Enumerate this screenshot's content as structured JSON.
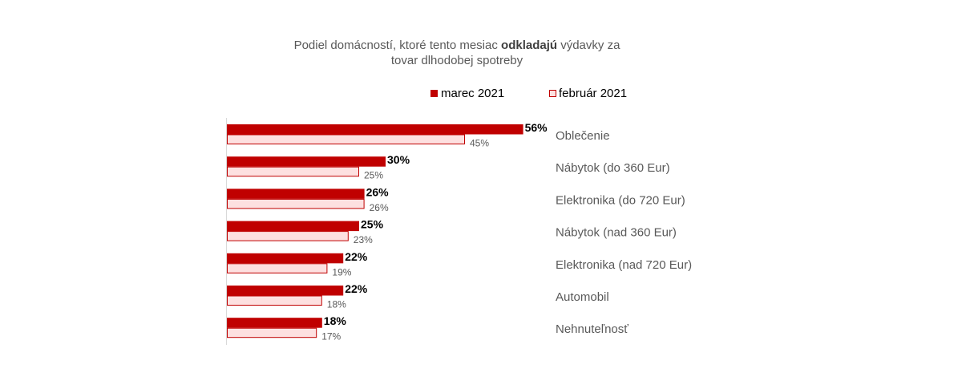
{
  "chart_data": {
    "type": "bar",
    "orientation": "horizontal",
    "title": {
      "line1_before": "Podiel domácností, ktoré tento mesiac ",
      "line1_bold": "odkladajú",
      "line1_after": " výdavky za",
      "line2": "tovar dlhodobej spotreby"
    },
    "categories": [
      "Oblečenie",
      "Nábytok (do 360 Eur)",
      "Elektronika (do 720 Eur)",
      "Nábytok (nad 360 Eur)",
      "Elektronika (nad 720 Eur)",
      "Automobil",
      "Nehnuteľnosť"
    ],
    "series": [
      {
        "name": "marec 2021",
        "values": [
          56,
          30,
          26,
          25,
          22,
          22,
          18
        ],
        "labels": [
          "56%",
          "30%",
          "26%",
          "25%",
          "22%",
          "22%",
          "18%"
        ],
        "color": "#c00000"
      },
      {
        "name": "február 2021",
        "values": [
          45,
          25,
          26,
          23,
          19,
          18,
          17
        ],
        "labels": [
          "45%",
          "25%",
          "26%",
          "23%",
          "19%",
          "18%",
          "17%"
        ],
        "color": "#fde0e0",
        "border": "#c00000"
      }
    ],
    "xlim": [
      0,
      60
    ],
    "grid": false,
    "legend_position": "top"
  }
}
